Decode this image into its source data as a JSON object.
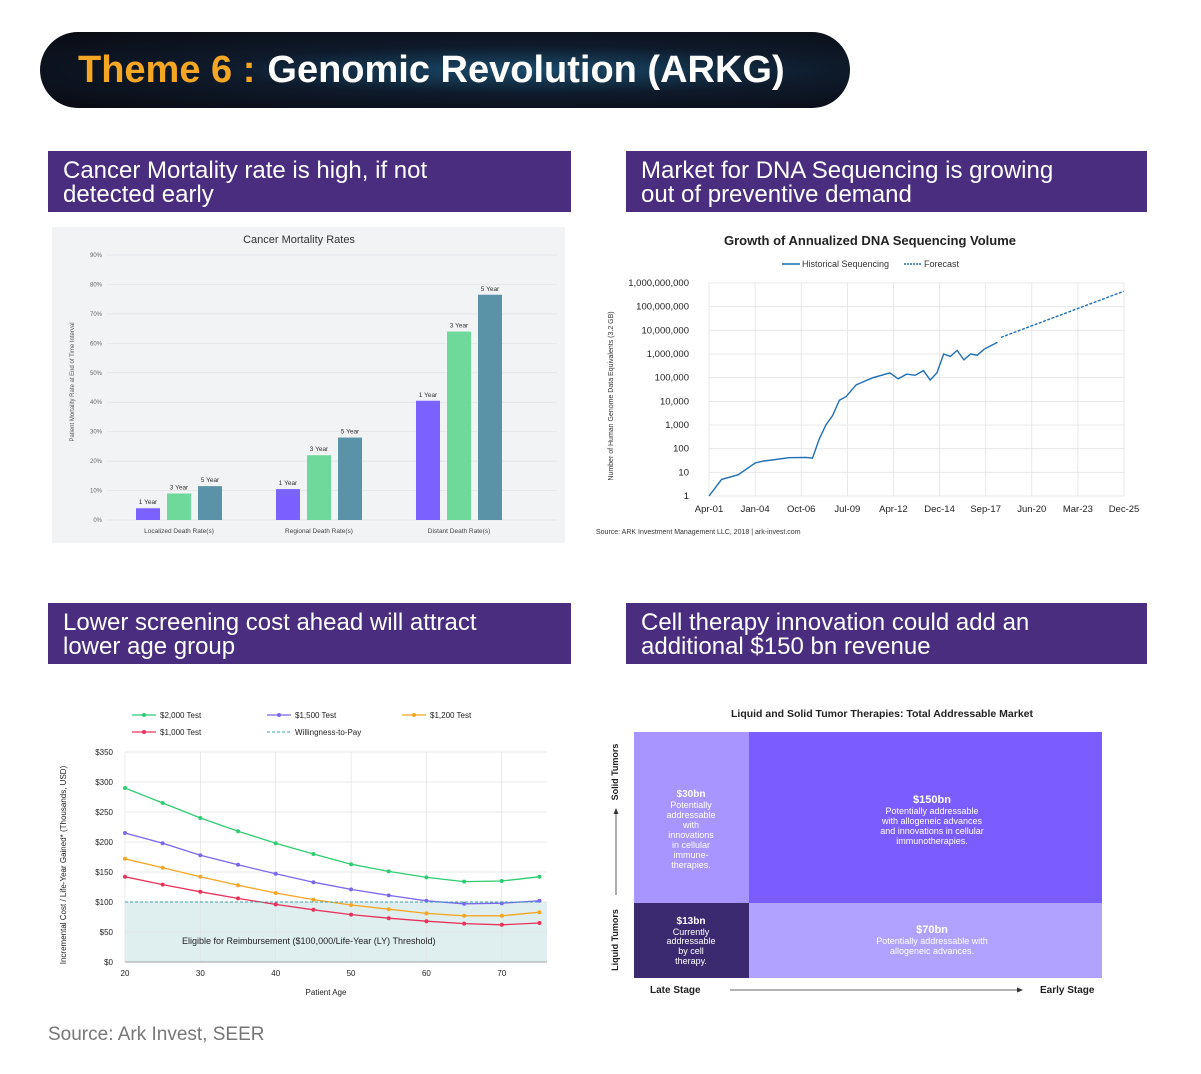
{
  "title": {
    "prefix": "Theme 6 :",
    "main": "Genomic Revolution (ARKG)"
  },
  "headers": {
    "h1_line1": "Cancer Mortality rate is high, if not",
    "h1_line2": "detected early",
    "h2_line1": "Market for DNA Sequencing is growing",
    "h2_line2": "out of preventive demand",
    "h3_line1": "Lower screening cost ahead will attract",
    "h3_line2": "lower age group",
    "h4_line1": "Cell therapy innovation could add an",
    "h4_line2": "additional $150 bn revenue"
  },
  "source": "Source: Ark Invest, SEER",
  "chart_data": [
    {
      "type": "bar",
      "title": "Cancer Mortality Rates",
      "ylabel": "Patient Mortality Rate at End of Time Interval",
      "ylim": [
        0,
        90
      ],
      "yticks": [
        "0%",
        "10%",
        "20%",
        "30%",
        "40%",
        "50%",
        "60%",
        "70%",
        "80%",
        "90%"
      ],
      "categories": [
        "Localized Death Rate(s)",
        "Regional Death Rate(s)",
        "Distant Death Rate(s)"
      ],
      "series": [
        {
          "name": "1 Year",
          "color": "#7b61ff",
          "values": [
            4,
            10.5,
            40.5
          ]
        },
        {
          "name": "3 Year",
          "color": "#6fd99c",
          "values": [
            9,
            22,
            64
          ]
        },
        {
          "name": "5 Year",
          "color": "#5a93a7",
          "values": [
            11.5,
            28,
            76.5
          ]
        }
      ]
    },
    {
      "type": "line",
      "title": "Growth of Annualized DNA Sequencing Volume",
      "ylabel": "Number of Human Genome Data Equivalents (3.2 GB)",
      "yscale": "log",
      "yticks": [
        "1",
        "10",
        "100",
        "1,000",
        "10,000",
        "100,000",
        "1,000,000",
        "10,000,000",
        "100,000,000",
        "1,000,000,000"
      ],
      "xticks": [
        "Apr-01",
        "Jan-04",
        "Oct-06",
        "Jul-09",
        "Apr-12",
        "Dec-14",
        "Sep-17",
        "Jun-20",
        "Mar-23",
        "Dec-25"
      ],
      "legend": [
        "Historical Sequencing",
        "Forecast"
      ],
      "source": "Source: ARK Investment Management LLC, 2018 | ark-invest.com",
      "series": [
        {
          "name": "Historical Sequencing",
          "x": [
            2001.25,
            2002.0,
            2002.5,
            2003.0,
            2003.5,
            2004.0,
            2004.5,
            2005.0,
            2006.0,
            2007.0,
            2007.4,
            2007.8,
            2008.2,
            2008.6,
            2009.0,
            2009.4,
            2010.0,
            2011.0,
            2012.0,
            2012.5,
            2013.0,
            2013.5,
            2014.0,
            2014.4,
            2014.8,
            2015.2,
            2015.6,
            2016.0,
            2016.4,
            2016.8,
            2017.2,
            2017.6,
            2018.0,
            2018.4
          ],
          "y": [
            0,
            0.7,
            0.8,
            0.9,
            1.15,
            1.4,
            1.48,
            1.52,
            1.62,
            1.63,
            1.6,
            2.4,
            3.0,
            3.4,
            4.05,
            4.2,
            4.7,
            5.0,
            5.2,
            4.95,
            5.15,
            5.1,
            5.3,
            4.9,
            5.2,
            6.0,
            5.9,
            6.15,
            5.75,
            6.0,
            5.95,
            6.2,
            6.35,
            6.5
          ]
        },
        {
          "name": "Forecast",
          "x": [
            2018.6,
            2025.9
          ],
          "y": [
            6.7,
            8.65
          ]
        }
      ]
    },
    {
      "type": "line",
      "legend": [
        "$2,000 Test",
        "$1,500 Test",
        "$1,200 Test",
        "$1,000 Test",
        "Willingness-to-Pay"
      ],
      "ylabel": "Incremental Cost / Life-Year Gained* (Thousands, USD)",
      "xlabel": "Patient Age",
      "xlim": [
        20,
        76
      ],
      "ylim": [
        0,
        350
      ],
      "yticks": [
        "$0",
        "$50",
        "$100",
        "$150",
        "$200",
        "$250",
        "$300",
        "$350"
      ],
      "xticks": [
        "20",
        "30",
        "40",
        "50",
        "60",
        "70"
      ],
      "annotation": "Eligible for Reimbursement ($100,000/Life-Year (LY) Threshold)",
      "x": [
        20,
        25,
        30,
        35,
        40,
        45,
        50,
        55,
        60,
        65,
        70,
        75
      ],
      "series": [
        {
          "name": "$2,000 Test",
          "color": "#2ecc71",
          "values": [
            290,
            265,
            240,
            218,
            198,
            180,
            163,
            151,
            141,
            134,
            135,
            142
          ]
        },
        {
          "name": "$1,500 Test",
          "color": "#7b68ee",
          "values": [
            215,
            198,
            178,
            162,
            147,
            133,
            121,
            111,
            102,
            97,
            98,
            102
          ]
        },
        {
          "name": "$1,200 Test",
          "color": "#f5a623",
          "values": [
            172,
            157,
            142,
            128,
            115,
            104,
            95,
            88,
            81,
            77,
            77,
            83
          ]
        },
        {
          "name": "$1,000 Test",
          "color": "#e8315b",
          "values": [
            142,
            129,
            117,
            106,
            96,
            87,
            79,
            73,
            68,
            64,
            62,
            65
          ]
        },
        {
          "name": "Willingness-to-Pay",
          "color": "#3aa0a8",
          "values": [
            100,
            100,
            100,
            100,
            100,
            100,
            100,
            100,
            100,
            100,
            100,
            100
          ]
        }
      ]
    },
    {
      "type": "table",
      "title": "Liquid and Solid Tumor Therapies: Total Addressable Market",
      "ylabels": [
        "Solid Tumors",
        "Liquid Tumors"
      ],
      "xlabels": [
        "Late Stage",
        "Early Stage"
      ],
      "cells": [
        {
          "value": "$30bn",
          "line1": "Potentially",
          "line2": "addressable",
          "line3": "with",
          "line4": "innovations",
          "line5": "in cellular",
          "line6": "immune-",
          "line7": "therapies."
        },
        {
          "value": "$150bn",
          "line1": "Potentially addressable",
          "line2": "with allogeneic advances",
          "line3": "and innovations in cellular",
          "line4": "immunotherapies."
        },
        {
          "value": "$13bn",
          "line1": "Currently",
          "line2": "addressable",
          "line3": "by cell",
          "line4": "therapy."
        },
        {
          "value": "$70bn",
          "line1": "Potentially addressable with",
          "line2": "allogeneic advances."
        }
      ]
    }
  ]
}
